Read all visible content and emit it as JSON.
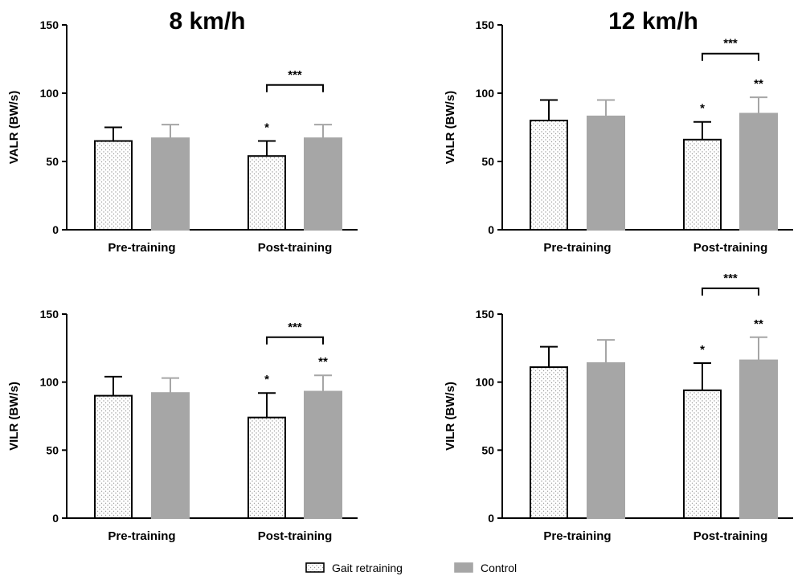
{
  "columns": [
    {
      "title": "8 km/h"
    },
    {
      "title": "12 km/h"
    }
  ],
  "legend": [
    {
      "label": "Gait retraining",
      "style": "dotted",
      "color": "#ffffff"
    },
    {
      "label": "Control",
      "style": "solid",
      "color": "#a6a6a6"
    }
  ],
  "chart_data": [
    {
      "type": "bar",
      "panel": "8 km/h VALR",
      "title": "8 km/h",
      "ylabel": "VALR (BW/s)",
      "categories": [
        "Pre-training",
        "Post-training"
      ],
      "ylim": [
        0,
        150
      ],
      "yticks": [
        0,
        50,
        100,
        150
      ],
      "series": [
        {
          "name": "Gait retraining",
          "values": [
            65,
            54
          ],
          "errors": [
            10,
            11
          ],
          "annotations": [
            "",
            "*"
          ]
        },
        {
          "name": "Control",
          "values": [
            67,
            67
          ],
          "errors": [
            10,
            10
          ],
          "annotations": [
            "",
            ""
          ]
        }
      ],
      "brackets": [
        {
          "category": "Post-training",
          "label": "***",
          "y": 106
        }
      ],
      "grid": false
    },
    {
      "type": "bar",
      "panel": "12 km/h VALR",
      "title": "12 km/h",
      "ylabel": "VALR (BW/s)",
      "categories": [
        "Pre-training",
        "Post-training"
      ],
      "ylim": [
        0,
        150
      ],
      "yticks": [
        0,
        50,
        100,
        150
      ],
      "series": [
        {
          "name": "Gait retraining",
          "values": [
            80,
            66
          ],
          "errors": [
            15,
            13
          ],
          "annotations": [
            "",
            "*"
          ]
        },
        {
          "name": "Control",
          "values": [
            83,
            85
          ],
          "errors": [
            12,
            12
          ],
          "annotations": [
            "",
            "**"
          ]
        }
      ],
      "brackets": [
        {
          "category": "Post-training",
          "label": "***",
          "y": 129
        }
      ],
      "grid": false
    },
    {
      "type": "bar",
      "panel": "8 km/h VILR",
      "ylabel": "VILR (BW/s)",
      "categories": [
        "Pre-training",
        "Post-training"
      ],
      "ylim": [
        0,
        150
      ],
      "yticks": [
        0,
        50,
        100,
        150
      ],
      "series": [
        {
          "name": "Gait retraining",
          "values": [
            90,
            74
          ],
          "errors": [
            14,
            18
          ],
          "annotations": [
            "",
            "*"
          ]
        },
        {
          "name": "Control",
          "values": [
            92,
            93
          ],
          "errors": [
            11,
            12
          ],
          "annotations": [
            "",
            "**"
          ]
        }
      ],
      "brackets": [
        {
          "category": "Post-training",
          "label": "***",
          "y": 133
        }
      ],
      "grid": false
    },
    {
      "type": "bar",
      "panel": "12 km/h VILR",
      "ylabel": "VILR (BW/s)",
      "categories": [
        "Pre-training",
        "Post-training"
      ],
      "ylim": [
        0,
        150
      ],
      "yticks": [
        0,
        50,
        100,
        150
      ],
      "series": [
        {
          "name": "Gait retraining",
          "values": [
            111,
            94
          ],
          "errors": [
            15,
            20
          ],
          "annotations": [
            "",
            "*"
          ]
        },
        {
          "name": "Control",
          "values": [
            114,
            116
          ],
          "errors": [
            17,
            17
          ],
          "annotations": [
            "",
            "**"
          ]
        }
      ],
      "brackets": [
        {
          "category": "Post-training",
          "label": "***",
          "y": 169
        }
      ],
      "grid": false
    }
  ]
}
